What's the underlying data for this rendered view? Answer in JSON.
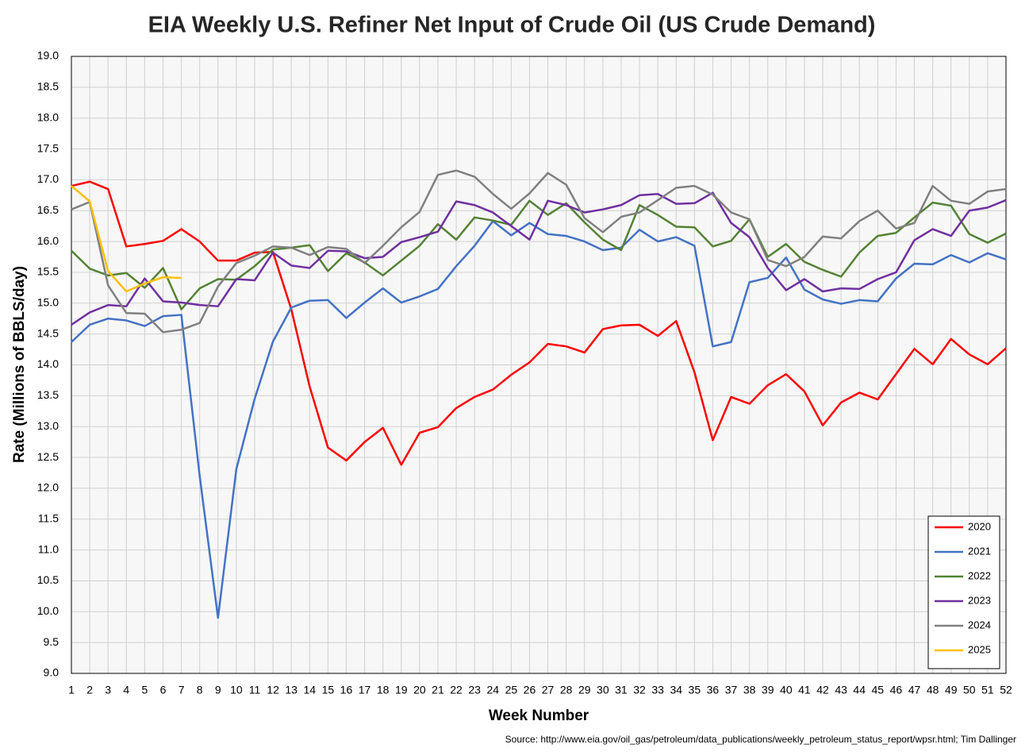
{
  "chart_data": {
    "type": "line",
    "title": "EIA Weekly U.S. Refiner Net Input of Crude Oil (US Crude Demand)",
    "x_label": "Week Number",
    "y_label": "Rate (Millions of BBLS/day)",
    "source": "Source: http://www.eia.gov/oil_gas/petroleum/data_publications/weekly_petroleum_status_report/wpsr.html; Tim Dallinger",
    "x": [
      1,
      2,
      3,
      4,
      5,
      6,
      7,
      8,
      9,
      10,
      11,
      12,
      13,
      14,
      15,
      16,
      17,
      18,
      19,
      20,
      21,
      22,
      23,
      24,
      25,
      26,
      27,
      28,
      29,
      30,
      31,
      32,
      33,
      34,
      35,
      36,
      37,
      38,
      39,
      40,
      41,
      42,
      43,
      44,
      45,
      46,
      47,
      48,
      49,
      50,
      51,
      52
    ],
    "xlim": [
      1,
      52
    ],
    "xticks": [
      1,
      2,
      3,
      4,
      5,
      6,
      7,
      8,
      9,
      10,
      11,
      12,
      13,
      14,
      15,
      16,
      17,
      18,
      19,
      20,
      21,
      22,
      23,
      24,
      25,
      26,
      27,
      28,
      29,
      30,
      31,
      32,
      33,
      34,
      35,
      36,
      37,
      38,
      39,
      40,
      41,
      42,
      43,
      44,
      45,
      46,
      47,
      48,
      49,
      50,
      51,
      52
    ],
    "ylim": [
      9,
      19
    ],
    "yticks": [
      {
        "value": 9,
        "label": "9.0"
      },
      9.5,
      {
        "value": 10,
        "label": "10.0"
      },
      10.5,
      {
        "value": 11,
        "label": "11.0"
      },
      11.5,
      {
        "value": 12,
        "label": "12.0"
      },
      12.5,
      {
        "value": 13,
        "label": "13.0"
      },
      13.5,
      {
        "value": 14,
        "label": "14.0"
      },
      14.5,
      {
        "value": 15,
        "label": "15.0"
      },
      15.5,
      {
        "value": 16,
        "label": "16.0"
      },
      16.5,
      {
        "value": 17,
        "label": "17.0"
      },
      17.5,
      {
        "value": 18,
        "label": "18.0"
      },
      18.5,
      {
        "value": 19,
        "label": "19.0"
      }
    ],
    "grid": true,
    "legend": "bottom-right",
    "series": [
      {
        "name": "2020",
        "color": "#ff0000",
        "values": [
          16.9,
          16.97,
          16.85,
          15.92,
          15.96,
          16.01,
          16.2,
          16.0,
          15.69,
          15.69,
          15.82,
          15.83,
          14.9,
          13.65,
          12.66,
          12.45,
          12.75,
          12.98,
          12.38,
          12.9,
          12.99,
          13.3,
          13.48,
          13.6,
          13.84,
          14.04,
          14.34,
          14.3,
          14.2,
          14.58,
          14.64,
          14.65,
          14.47,
          14.71,
          13.88,
          12.78,
          13.48,
          13.37,
          13.67,
          13.85,
          13.57,
          13.02,
          13.39,
          13.55,
          13.44,
          13.85,
          14.26,
          14.01,
          14.42,
          14.17,
          14.01,
          14.27
        ]
      },
      {
        "name": "2021",
        "color": "#4472c4",
        "values": [
          14.37,
          14.65,
          14.75,
          14.72,
          14.63,
          14.79,
          14.81,
          12.2,
          9.9,
          12.31,
          13.45,
          14.38,
          14.93,
          15.04,
          15.05,
          14.76,
          15.01,
          15.24,
          15.01,
          15.11,
          15.23,
          15.6,
          15.93,
          16.33,
          16.1,
          16.3,
          16.12,
          16.09,
          16.0,
          15.86,
          15.9,
          16.19,
          16.0,
          16.07,
          15.93,
          14.3,
          14.37,
          15.34,
          15.41,
          15.74,
          15.22,
          15.06,
          14.99,
          15.05,
          15.03,
          15.4,
          15.64,
          15.63,
          15.78,
          15.66,
          15.81,
          15.71
        ]
      },
      {
        "name": "2022",
        "color": "#548235",
        "values": [
          15.85,
          15.56,
          15.45,
          15.49,
          15.25,
          15.57,
          14.9,
          15.24,
          15.39,
          15.38,
          15.6,
          15.87,
          15.9,
          15.94,
          15.52,
          15.81,
          15.66,
          15.45,
          15.69,
          15.93,
          16.28,
          16.03,
          16.39,
          16.34,
          16.27,
          16.66,
          16.43,
          16.62,
          16.31,
          16.03,
          15.86,
          16.59,
          16.43,
          16.24,
          16.23,
          15.92,
          16.01,
          16.36,
          15.75,
          15.96,
          15.67,
          15.54,
          15.43,
          15.82,
          16.09,
          16.14,
          16.39,
          16.63,
          16.58,
          16.12,
          15.98,
          16.13
        ]
      },
      {
        "name": "2023",
        "color": "#7030a0",
        "values": [
          14.65,
          14.85,
          14.97,
          14.95,
          15.4,
          15.03,
          15.01,
          14.97,
          14.95,
          15.39,
          15.37,
          15.82,
          15.61,
          15.57,
          15.85,
          15.84,
          15.73,
          15.75,
          15.99,
          16.07,
          16.16,
          16.65,
          16.59,
          16.47,
          16.25,
          16.03,
          16.66,
          16.59,
          16.47,
          16.52,
          16.59,
          16.75,
          16.77,
          16.61,
          16.62,
          16.79,
          16.3,
          16.07,
          15.57,
          15.21,
          15.39,
          15.19,
          15.24,
          15.23,
          15.39,
          15.5,
          16.02,
          16.2,
          16.09,
          16.5,
          16.55,
          16.67
        ]
      },
      {
        "name": "2024",
        "color": "#808080",
        "values": [
          16.52,
          16.64,
          15.29,
          14.84,
          14.83,
          14.53,
          14.57,
          14.68,
          15.27,
          15.65,
          15.77,
          15.92,
          15.9,
          15.78,
          15.91,
          15.88,
          15.65,
          15.93,
          16.23,
          16.48,
          17.08,
          17.15,
          17.05,
          16.77,
          16.53,
          16.78,
          17.11,
          16.92,
          16.38,
          16.15,
          16.4,
          16.47,
          16.67,
          16.87,
          16.9,
          16.76,
          16.47,
          16.36,
          15.7,
          15.6,
          15.75,
          16.08,
          16.05,
          16.33,
          16.5,
          16.21,
          16.3,
          16.9,
          16.66,
          16.61,
          16.81,
          16.85
        ]
      },
      {
        "name": "2025",
        "color": "#ffc000",
        "values": [
          16.9,
          16.65,
          15.52,
          15.19,
          15.32,
          15.42,
          15.41,
          null,
          null,
          null,
          null,
          null,
          null,
          null,
          null,
          null,
          null,
          null,
          null,
          null,
          null,
          null,
          null,
          null,
          null,
          null,
          null,
          null,
          null,
          null,
          null,
          null,
          null,
          null,
          null,
          null,
          null,
          null,
          null,
          null,
          null,
          null,
          null,
          null,
          null,
          null,
          null,
          null,
          null,
          null,
          null,
          null
        ]
      }
    ]
  }
}
